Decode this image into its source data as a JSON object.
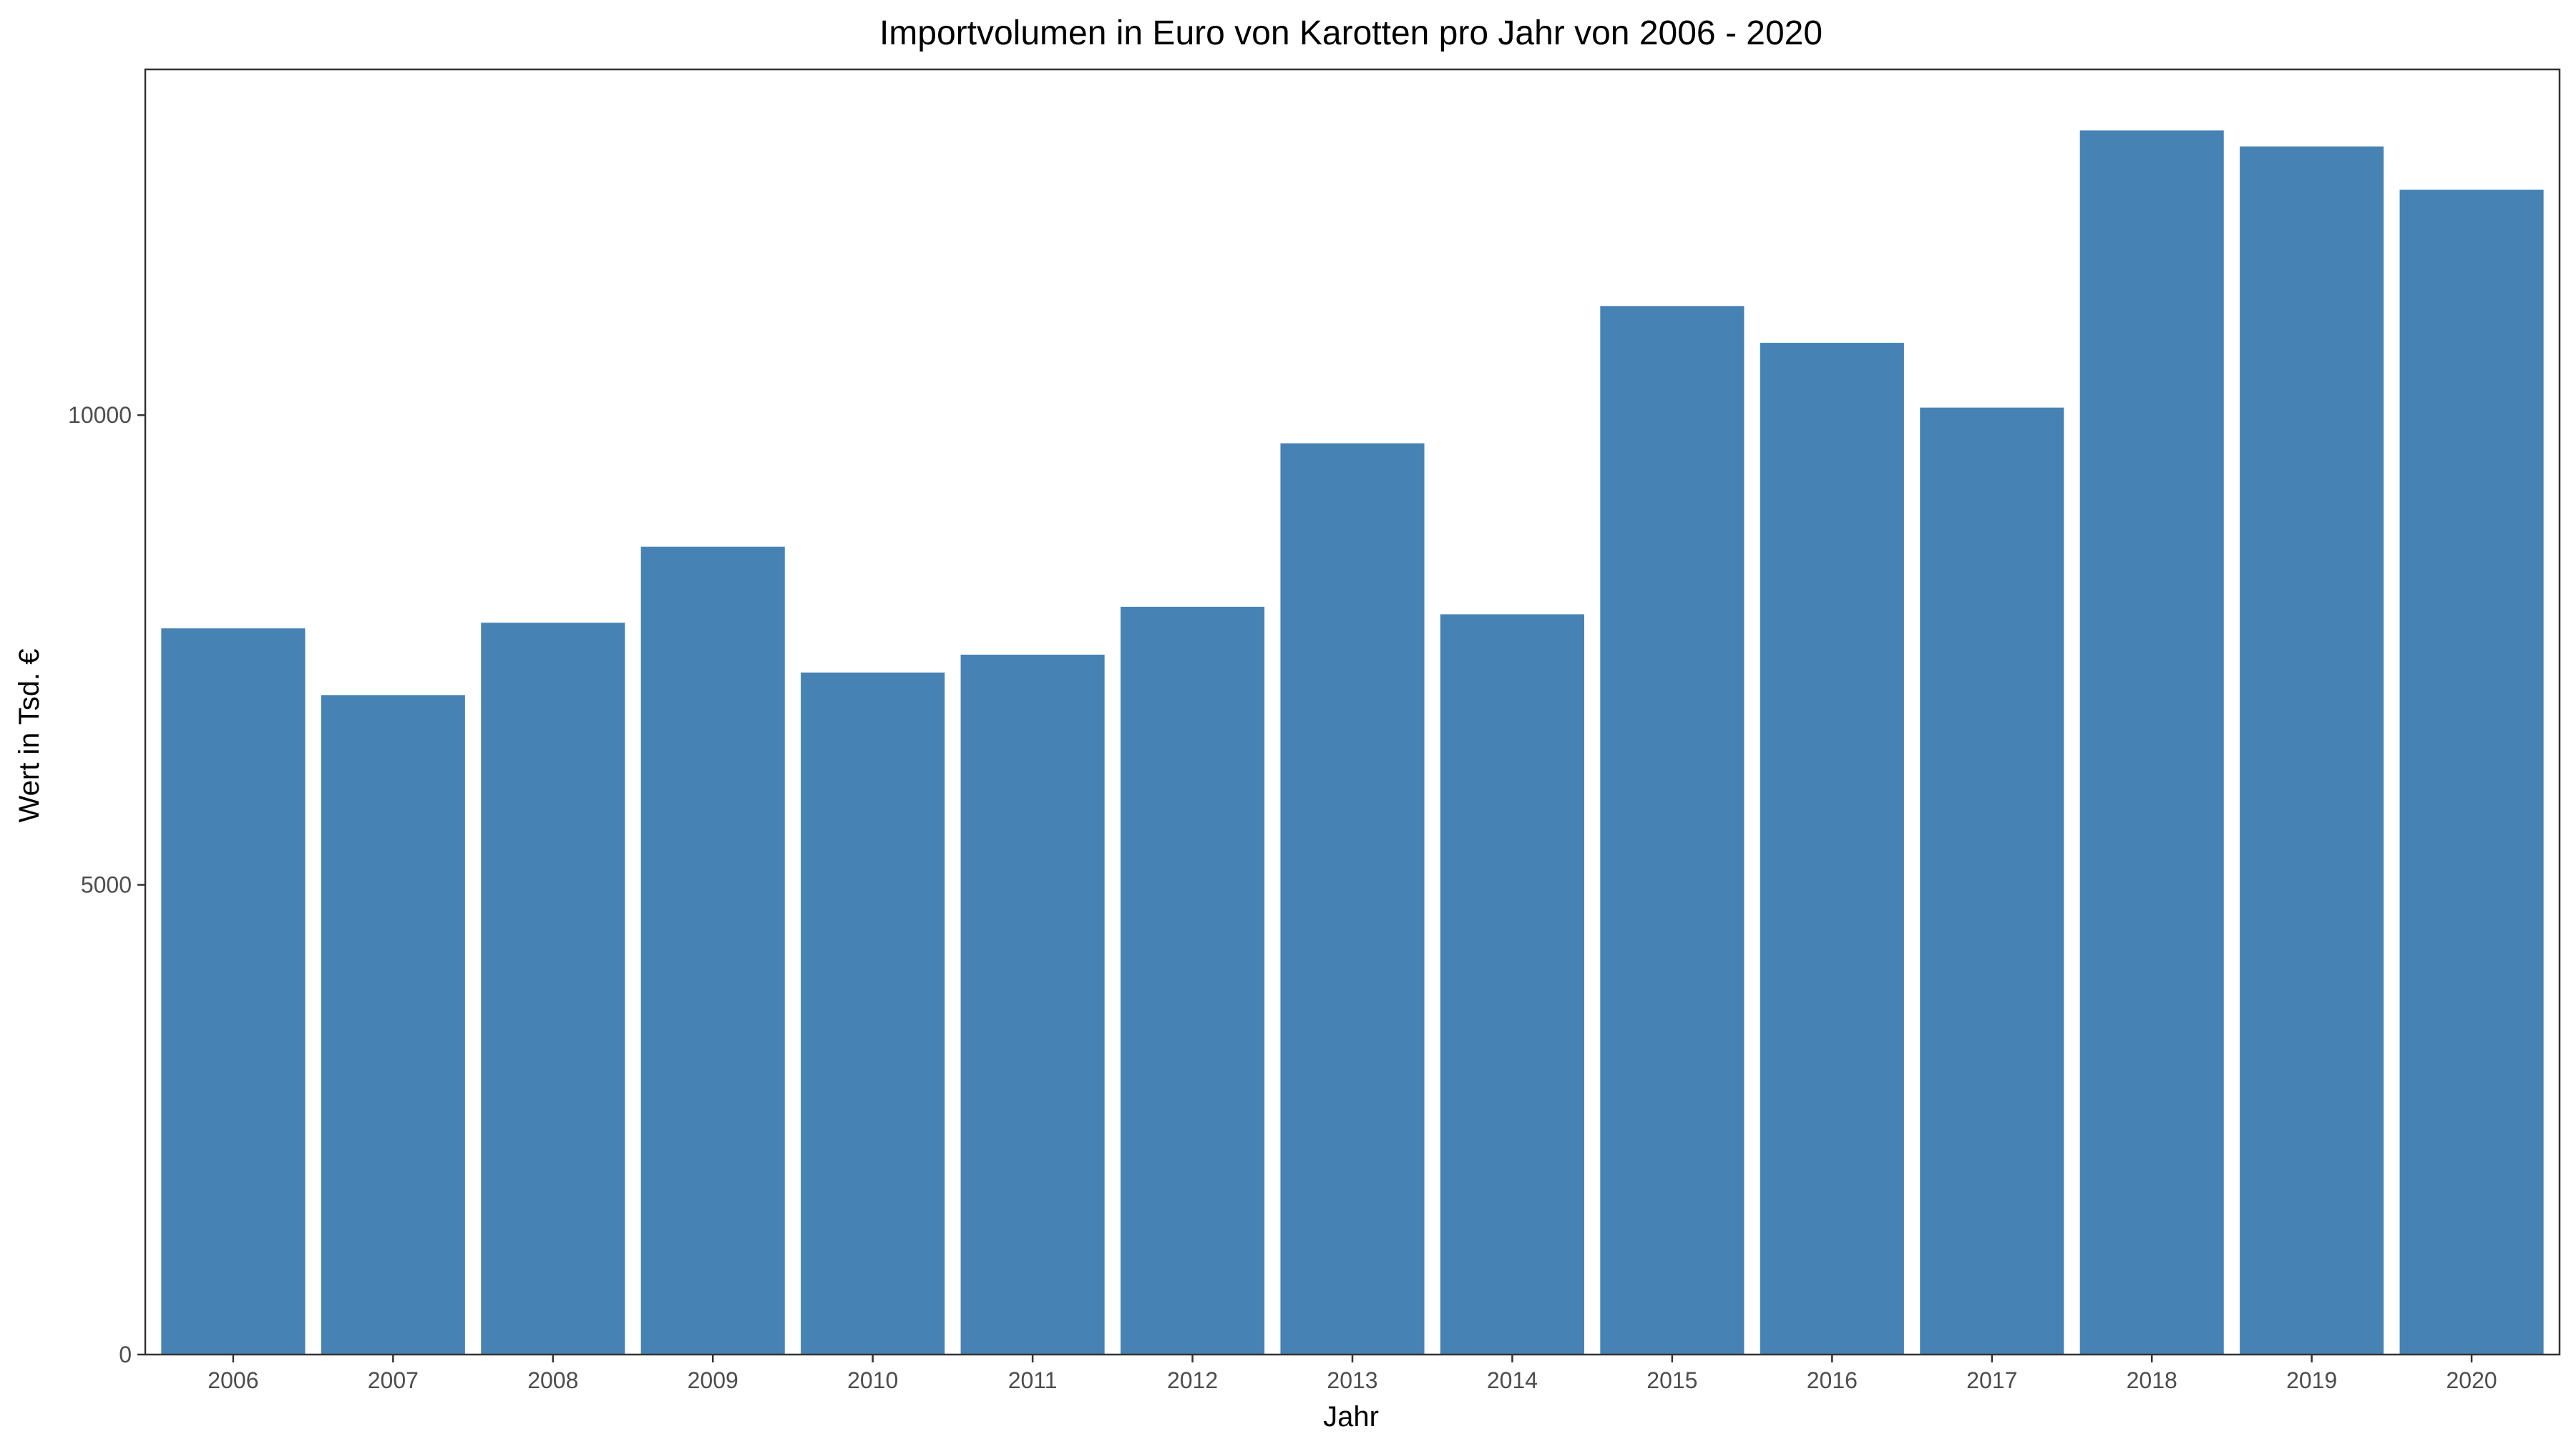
{
  "chart_data": {
    "type": "bar",
    "title": "Importvolumen in Euro von Karotten pro Jahr von 2006 - 2020",
    "xlabel": "Jahr",
    "ylabel": "Wert in Tsd. €",
    "categories": [
      "2006",
      "2007",
      "2008",
      "2009",
      "2010",
      "2011",
      "2012",
      "2013",
      "2014",
      "2015",
      "2016",
      "2017",
      "2018",
      "2019",
      "2020"
    ],
    "values": [
      7730,
      7020,
      7790,
      8600,
      7260,
      7450,
      7960,
      9700,
      7880,
      11160,
      10770,
      10080,
      13030,
      12860,
      12400
    ],
    "ylim": [
      0,
      13680
    ],
    "yticks": [
      0,
      5000,
      10000
    ],
    "ytick_labels": [
      "0",
      "5000",
      "10000"
    ],
    "grid": false,
    "bar_color": "#4682B4"
  }
}
